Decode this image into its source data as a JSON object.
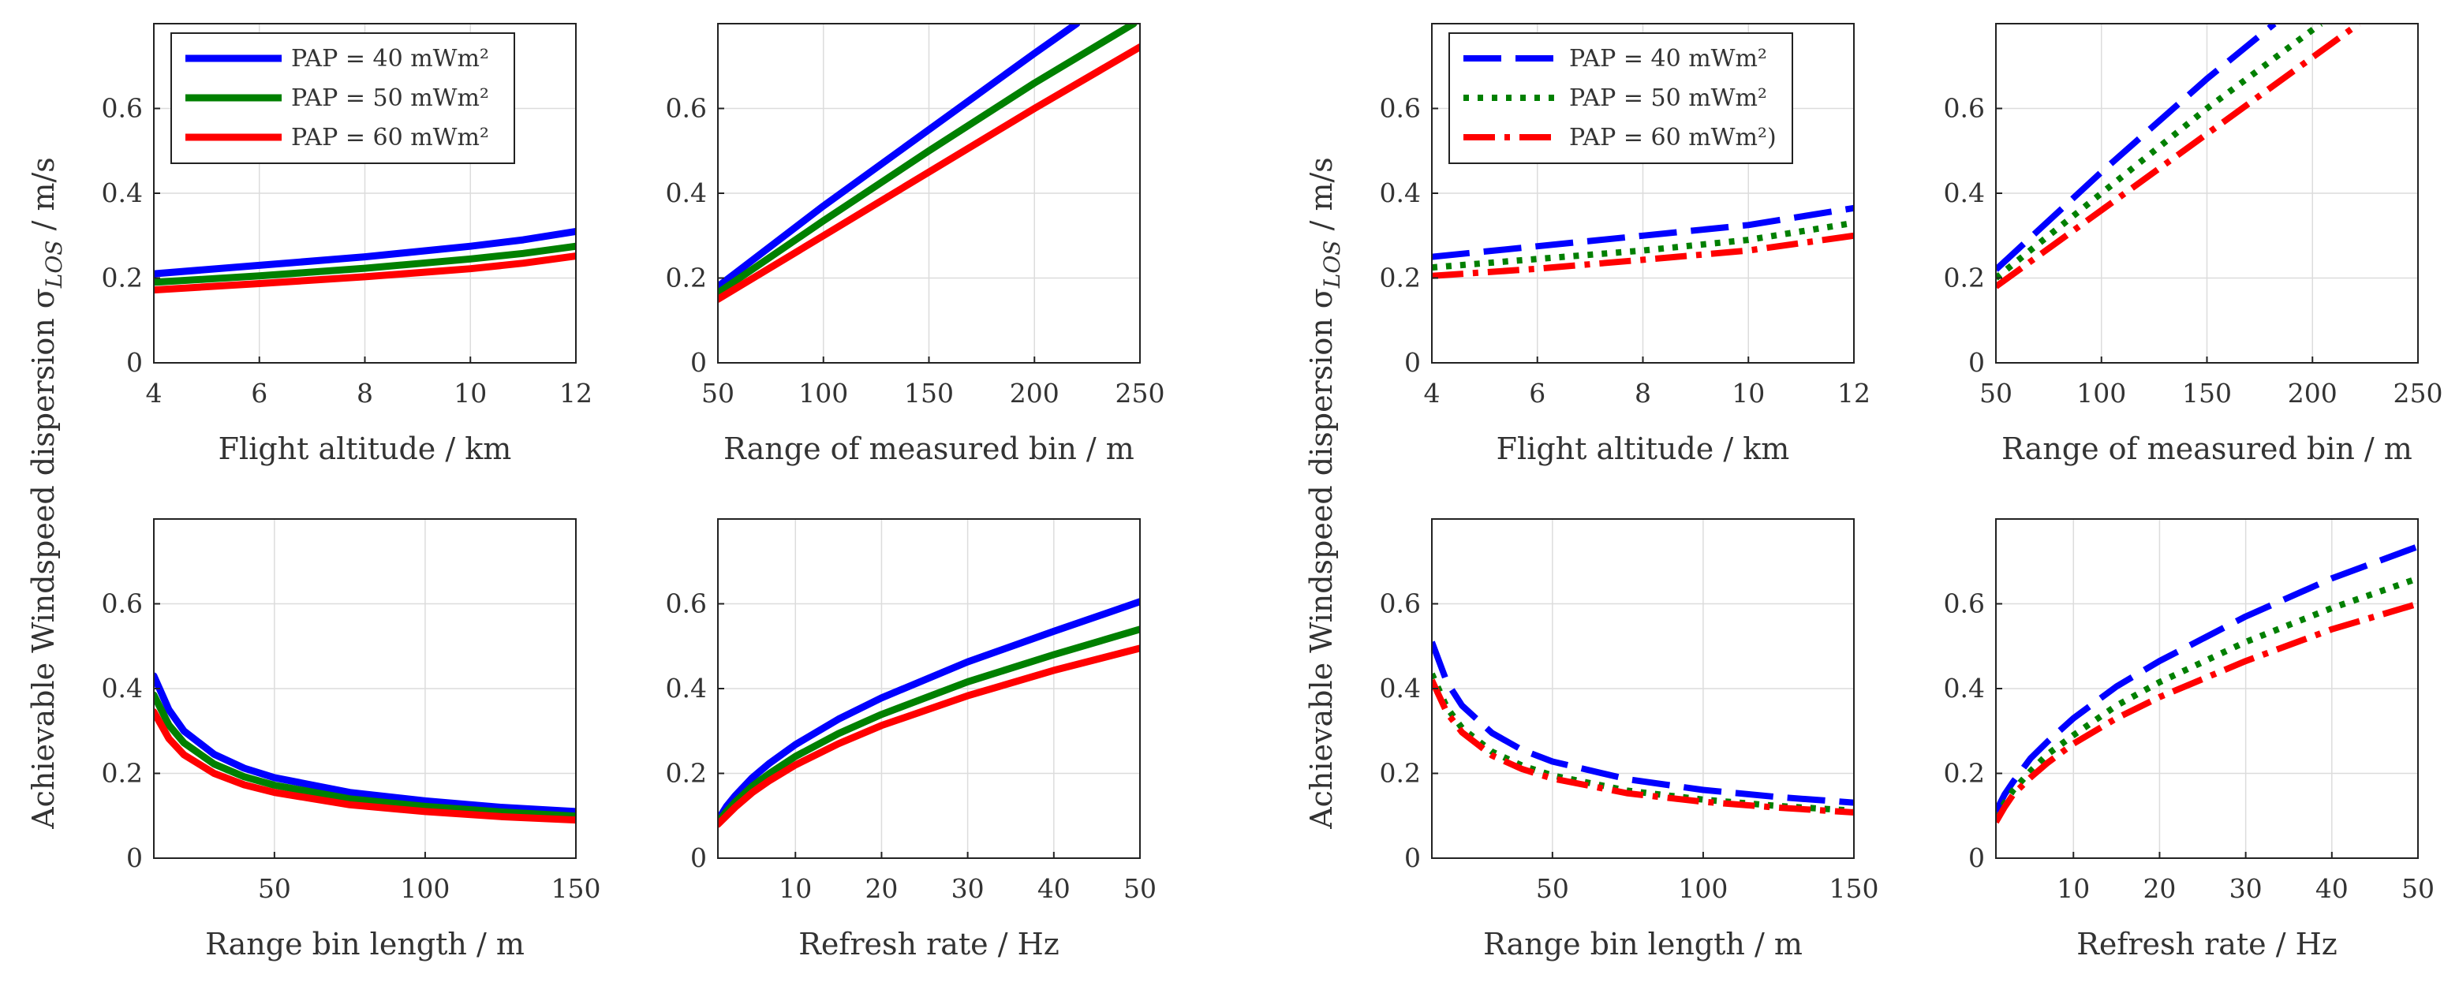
{
  "figure": {
    "left_block_ylabel": "Achievable Windspeed dispersion σ",
    "left_block_ylabel_sub": "LOS",
    "left_block_ylabel_unit": " / m/s",
    "right_block_ylabel": "Achievable Windspeed dispersion σ",
    "right_block_ylabel_sub": "LOS",
    "right_block_ylabel_unit": " / m/s"
  },
  "chart_data": [
    {
      "id": "left-top-left",
      "type": "line",
      "block": "solid",
      "xlabel": "Flight altitude  / km",
      "ylabel": "",
      "xlim": [
        4,
        12
      ],
      "ylim": [
        0,
        0.8
      ],
      "xticks": [
        4,
        6,
        8,
        10,
        12
      ],
      "yticks": [
        0,
        0.2,
        0.4,
        0.6
      ],
      "grid": true,
      "legend": {
        "placement": "top-left",
        "entries": [
          "PAP = 40 mWm²",
          "PAP = 50 mWm²",
          "PAP = 60 mWm²"
        ]
      },
      "series": [
        {
          "name": "PAP = 40 mWm²",
          "color": "#0000ff",
          "style": "solid",
          "x": [
            4,
            6,
            8,
            10,
            11,
            12
          ],
          "values": [
            0.21,
            0.23,
            0.25,
            0.275,
            0.29,
            0.31
          ]
        },
        {
          "name": "PAP = 50 mWm²",
          "color": "#008000",
          "style": "solid",
          "x": [
            4,
            6,
            8,
            10,
            11,
            12
          ],
          "values": [
            0.19,
            0.205,
            0.223,
            0.245,
            0.258,
            0.275
          ]
        },
        {
          "name": "PAP = 60 mWm²",
          "color": "#ff0000",
          "style": "solid",
          "x": [
            4,
            6,
            8,
            10,
            11,
            12
          ],
          "values": [
            0.172,
            0.187,
            0.203,
            0.222,
            0.235,
            0.252
          ]
        }
      ]
    },
    {
      "id": "left-top-right",
      "type": "line",
      "block": "solid",
      "xlabel": "Range of measured bin  / m",
      "ylabel": "",
      "xlim": [
        50,
        250
      ],
      "ylim": [
        0,
        0.8
      ],
      "xticks": [
        50,
        100,
        150,
        200,
        250
      ],
      "yticks": [
        0,
        0.2,
        0.4,
        0.6
      ],
      "grid": true,
      "series": [
        {
          "name": "PAP = 40 mWm²",
          "color": "#0000ff",
          "style": "solid",
          "x": [
            50,
            100,
            150,
            200,
            220
          ],
          "values": [
            0.18,
            0.37,
            0.55,
            0.73,
            0.8
          ]
        },
        {
          "name": "PAP = 50 mWm²",
          "color": "#008000",
          "style": "solid",
          "x": [
            50,
            100,
            150,
            200,
            247
          ],
          "values": [
            0.165,
            0.335,
            0.5,
            0.66,
            0.8
          ]
        },
        {
          "name": "PAP = 60 mWm²",
          "color": "#ff0000",
          "style": "solid",
          "x": [
            50,
            100,
            150,
            200,
            250
          ],
          "values": [
            0.15,
            0.3,
            0.45,
            0.6,
            0.745
          ]
        }
      ]
    },
    {
      "id": "left-bottom-left",
      "type": "line",
      "block": "solid",
      "xlabel": "Range bin length  / m",
      "ylabel": "",
      "xlim": [
        10,
        150
      ],
      "ylim": [
        0,
        0.8
      ],
      "xticks": [
        50,
        100,
        150
      ],
      "yticks": [
        0,
        0.2,
        0.4,
        0.6
      ],
      "grid": true,
      "series": [
        {
          "name": "PAP = 40 mWm²",
          "color": "#0000ff",
          "style": "solid",
          "x": [
            10,
            15,
            20,
            30,
            40,
            50,
            75,
            100,
            125,
            150
          ],
          "values": [
            0.43,
            0.35,
            0.3,
            0.245,
            0.212,
            0.19,
            0.155,
            0.135,
            0.12,
            0.11
          ]
        },
        {
          "name": "PAP = 50 mWm²",
          "color": "#008000",
          "style": "solid",
          "x": [
            10,
            15,
            20,
            30,
            40,
            50,
            75,
            100,
            125,
            150
          ],
          "values": [
            0.385,
            0.314,
            0.272,
            0.222,
            0.192,
            0.172,
            0.14,
            0.122,
            0.109,
            0.099
          ]
        },
        {
          "name": "PAP = 60 mWm²",
          "color": "#ff0000",
          "style": "solid",
          "x": [
            10,
            15,
            20,
            30,
            40,
            50,
            75,
            100,
            125,
            150
          ],
          "values": [
            0.345,
            0.282,
            0.244,
            0.2,
            0.173,
            0.155,
            0.126,
            0.11,
            0.098,
            0.09
          ]
        }
      ]
    },
    {
      "id": "left-bottom-right",
      "type": "line",
      "block": "solid",
      "xlabel": "Refresh rate  / Hz",
      "ylabel": "",
      "xlim": [
        1,
        50
      ],
      "ylim": [
        0,
        0.8
      ],
      "xticks": [
        10,
        20,
        30,
        40,
        50
      ],
      "yticks": [
        0,
        0.2,
        0.4,
        0.6
      ],
      "grid": true,
      "series": [
        {
          "name": "PAP = 40 mWm²",
          "color": "#0000ff",
          "style": "solid",
          "x": [
            1,
            2,
            3,
            5,
            7,
            10,
            15,
            20,
            30,
            40,
            50
          ],
          "values": [
            0.09,
            0.122,
            0.147,
            0.19,
            0.224,
            0.268,
            0.328,
            0.378,
            0.463,
            0.535,
            0.605
          ]
        },
        {
          "name": "PAP = 50 mWm²",
          "color": "#008000",
          "style": "solid",
          "x": [
            1,
            2,
            3,
            5,
            7,
            10,
            15,
            20,
            30,
            40,
            50
          ],
          "values": [
            0.085,
            0.11,
            0.132,
            0.17,
            0.2,
            0.24,
            0.294,
            0.339,
            0.416,
            0.48,
            0.54
          ]
        },
        {
          "name": "PAP = 60 mWm²",
          "color": "#ff0000",
          "style": "solid",
          "x": [
            1,
            2,
            3,
            5,
            7,
            10,
            15,
            20,
            30,
            40,
            50
          ],
          "values": [
            0.08,
            0.1,
            0.12,
            0.155,
            0.183,
            0.22,
            0.27,
            0.313,
            0.383,
            0.443,
            0.495
          ]
        }
      ]
    },
    {
      "id": "right-top-left",
      "type": "line",
      "block": "dashed",
      "xlabel": "Flight altitude  / km",
      "ylabel": "",
      "xlim": [
        4,
        12
      ],
      "ylim": [
        0,
        0.8
      ],
      "xticks": [
        4,
        6,
        8,
        10,
        12
      ],
      "yticks": [
        0,
        0.2,
        0.4,
        0.6
      ],
      "grid": true,
      "legend": {
        "placement": "top-left",
        "entries": [
          "PAP = 40 mWm²",
          "PAP = 50 mWm²",
          "PAP = 60 mWm²)"
        ]
      },
      "series": [
        {
          "name": "PAP = 40 mWm²",
          "color": "#0000ff",
          "style": "dash",
          "x": [
            4,
            6,
            8,
            10,
            12
          ],
          "values": [
            0.25,
            0.275,
            0.3,
            0.325,
            0.365
          ]
        },
        {
          "name": "PAP = 50 mWm²",
          "color": "#008000",
          "style": "dot",
          "x": [
            4,
            6,
            8,
            10,
            12
          ],
          "values": [
            0.225,
            0.245,
            0.265,
            0.29,
            0.33
          ]
        },
        {
          "name": "PAP = 60 mWm²)",
          "color": "#ff0000",
          "style": "dashdot",
          "x": [
            4,
            6,
            8,
            10,
            12
          ],
          "values": [
            0.205,
            0.222,
            0.243,
            0.265,
            0.3
          ]
        }
      ]
    },
    {
      "id": "right-top-right",
      "type": "line",
      "block": "dashed",
      "xlabel": "Range of measured bin  / m",
      "ylabel": "",
      "xlim": [
        50,
        250
      ],
      "ylim": [
        0,
        0.8
      ],
      "xticks": [
        50,
        100,
        150,
        200,
        250
      ],
      "yticks": [
        0,
        0.2,
        0.4,
        0.6
      ],
      "grid": true,
      "series": [
        {
          "name": "PAP = 40 mWm²",
          "color": "#0000ff",
          "style": "dash",
          "x": [
            50,
            100,
            150,
            182
          ],
          "values": [
            0.22,
            0.45,
            0.67,
            0.8
          ]
        },
        {
          "name": "PAP = 50 mWm²",
          "color": "#008000",
          "style": "dot",
          "x": [
            50,
            100,
            150,
            204
          ],
          "values": [
            0.2,
            0.4,
            0.6,
            0.8
          ]
        },
        {
          "name": "PAP = 60 mWm²)",
          "color": "#ff0000",
          "style": "dashdot",
          "x": [
            50,
            100,
            150,
            222
          ],
          "values": [
            0.18,
            0.36,
            0.54,
            0.8
          ]
        }
      ]
    },
    {
      "id": "right-bottom-left",
      "type": "line",
      "block": "dashed",
      "xlabel": "Range bin length  / m",
      "ylabel": "",
      "xlim": [
        10,
        150
      ],
      "ylim": [
        0,
        0.8
      ],
      "xticks": [
        50,
        100,
        150
      ],
      "yticks": [
        0,
        0.2,
        0.4,
        0.6
      ],
      "grid": true,
      "series": [
        {
          "name": "PAP = 40 mWm²",
          "color": "#0000ff",
          "style": "dash",
          "x": [
            10,
            15,
            20,
            30,
            40,
            50,
            75,
            100,
            125,
            150
          ],
          "values": [
            0.51,
            0.415,
            0.36,
            0.295,
            0.255,
            0.228,
            0.186,
            0.161,
            0.144,
            0.131
          ]
        },
        {
          "name": "PAP = 50 mWm²",
          "color": "#008000",
          "style": "dot",
          "x": [
            10,
            15,
            20,
            30,
            40,
            50,
            75,
            100,
            125,
            150
          ],
          "values": [
            0.435,
            0.355,
            0.307,
            0.251,
            0.218,
            0.195,
            0.159,
            0.138,
            0.123,
            0.112
          ]
        },
        {
          "name": "PAP = 60 mWm²)",
          "color": "#ff0000",
          "style": "dashdot",
          "x": [
            10,
            15,
            20,
            30,
            40,
            50,
            75,
            100,
            125,
            150
          ],
          "values": [
            0.42,
            0.343,
            0.297,
            0.242,
            0.21,
            0.188,
            0.153,
            0.133,
            0.119,
            0.108
          ]
        }
      ]
    },
    {
      "id": "right-bottom-right",
      "type": "line",
      "block": "dashed",
      "xlabel": "Refresh rate  / Hz",
      "ylabel": "",
      "xlim": [
        1,
        50
      ],
      "ylim": [
        0,
        0.8
      ],
      "xticks": [
        10,
        20,
        30,
        40,
        50
      ],
      "yticks": [
        0,
        0.2,
        0.4,
        0.6
      ],
      "grid": true,
      "series": [
        {
          "name": "PAP = 40 mWm²",
          "color": "#0000ff",
          "style": "dash",
          "x": [
            1,
            2,
            3,
            5,
            7,
            10,
            15,
            20,
            30,
            40,
            50
          ],
          "values": [
            0.11,
            0.15,
            0.18,
            0.235,
            0.275,
            0.33,
            0.405,
            0.465,
            0.57,
            0.66,
            0.735
          ]
        },
        {
          "name": "PAP = 50 mWm²",
          "color": "#008000",
          "style": "dot",
          "x": [
            1,
            2,
            3,
            5,
            7,
            10,
            15,
            20,
            30,
            40,
            50
          ],
          "values": [
            0.095,
            0.13,
            0.16,
            0.205,
            0.245,
            0.29,
            0.36,
            0.415,
            0.51,
            0.59,
            0.66
          ]
        },
        {
          "name": "PAP = 60 mWm²)",
          "color": "#ff0000",
          "style": "dashdot",
          "x": [
            1,
            2,
            3,
            5,
            7,
            10,
            15,
            20,
            30,
            40,
            50
          ],
          "values": [
            0.085,
            0.12,
            0.15,
            0.19,
            0.225,
            0.27,
            0.33,
            0.38,
            0.465,
            0.54,
            0.6
          ]
        }
      ]
    }
  ]
}
